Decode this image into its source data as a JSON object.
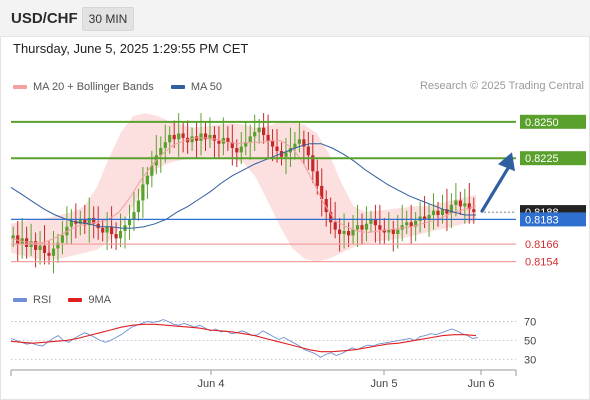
{
  "header": {
    "symbol": "USD/CHF",
    "timeframe": "30 MIN"
  },
  "timestamp": "Thursday, June 5, 2025 1:29:55 PM CET",
  "legend": {
    "ma20": "MA 20 + Bollinger Bands",
    "ma50": "MA 50",
    "credit": "Research © 2025 Trading Central"
  },
  "rsi_legend": {
    "rsi": "RSI",
    "ma9": "9MA"
  },
  "colors": {
    "green": "#5aa02c",
    "blue": "#2f6fd0",
    "red_line": "#f3a0a0",
    "bollinger": "#fbd6d6",
    "ma50": "#2f5f9f",
    "candle_up": "#5aa02c",
    "candle_down": "#c62828",
    "arrow": "#2f5f9f",
    "rsi": "#6f8fd8",
    "rsi_ma": "#e02020"
  },
  "chart_data": [
    {
      "type": "candlestick",
      "title": "",
      "ylim": [
        0.814,
        0.8265
      ],
      "x_labels": [
        "Jun 4",
        "Jun 5",
        "Jun 6"
      ],
      "price_levels": [
        {
          "value": 0.825,
          "label": "0.8250",
          "kind": "resistance"
        },
        {
          "value": 0.8225,
          "label": "0.8225",
          "kind": "resistance"
        },
        {
          "value": 0.8188,
          "label": "0.8188",
          "kind": "last-price"
        },
        {
          "value": 0.8183,
          "label": "0.8183",
          "kind": "pivot"
        },
        {
          "value": 0.8166,
          "label": "0.8166",
          "kind": "support"
        },
        {
          "value": 0.8154,
          "label": "0.8154",
          "kind": "support"
        }
      ],
      "close_series": [
        0.8172,
        0.8166,
        0.817,
        0.8164,
        0.8168,
        0.8162,
        0.8165,
        0.816,
        0.8158,
        0.8163,
        0.8167,
        0.8172,
        0.8178,
        0.8182,
        0.818,
        0.8183,
        0.8179,
        0.8184,
        0.818,
        0.8177,
        0.8174,
        0.8178,
        0.8173,
        0.817,
        0.8175,
        0.8179,
        0.8183,
        0.8188,
        0.8196,
        0.8207,
        0.8213,
        0.822,
        0.8227,
        0.8232,
        0.8236,
        0.8241,
        0.8238,
        0.8242,
        0.8239,
        0.8236,
        0.824,
        0.8237,
        0.8242,
        0.8238,
        0.8241,
        0.8237,
        0.8235,
        0.8239,
        0.8236,
        0.8232,
        0.8229,
        0.8233,
        0.8236,
        0.824,
        0.8243,
        0.8246,
        0.8241,
        0.8237,
        0.8233,
        0.823,
        0.8226,
        0.8229,
        0.8232,
        0.8235,
        0.8238,
        0.8233,
        0.8227,
        0.8216,
        0.8206,
        0.8197,
        0.8188,
        0.8181,
        0.8176,
        0.8173,
        0.8175,
        0.8172,
        0.8176,
        0.8179,
        0.8176,
        0.818,
        0.8183,
        0.8179,
        0.8176,
        0.8174,
        0.8176,
        0.8173,
        0.8176,
        0.8179,
        0.8181,
        0.8178,
        0.8182,
        0.8185,
        0.8183,
        0.8186,
        0.8189,
        0.8186,
        0.819,
        0.8187,
        0.8193,
        0.8196,
        0.8192,
        0.8194,
        0.819,
        0.8188
      ],
      "ma50_series": [
        0.8205,
        0.82,
        0.8195,
        0.819,
        0.8186,
        0.8183,
        0.8181,
        0.818,
        0.8178,
        0.8178,
        0.8177,
        0.8177,
        0.8178,
        0.818,
        0.8183,
        0.8188,
        0.8192,
        0.8197,
        0.8202,
        0.8208,
        0.8213,
        0.8217,
        0.8221,
        0.8224,
        0.8227,
        0.823,
        0.8233,
        0.8235,
        0.8235,
        0.8232,
        0.8228,
        0.8223,
        0.8217,
        0.8212,
        0.8207,
        0.8203,
        0.8199,
        0.8196,
        0.8193,
        0.819,
        0.8188,
        0.8186,
        0.8186
      ],
      "ma20_series": [
        0.817,
        0.8168,
        0.8167,
        0.8167,
        0.817,
        0.8174,
        0.8178,
        0.818,
        0.8181,
        0.8183,
        0.8188,
        0.8198,
        0.821,
        0.822,
        0.8228,
        0.8234,
        0.8237,
        0.8239,
        0.8239,
        0.8238,
        0.8236,
        0.8235,
        0.8236,
        0.8236,
        0.8237,
        0.8237,
        0.8232,
        0.8222,
        0.8208,
        0.8193,
        0.8182,
        0.8178,
        0.8175,
        0.8174,
        0.8175,
        0.8176,
        0.8177,
        0.8178,
        0.818,
        0.8182,
        0.8185,
        0.8188,
        0.819,
        0.8192
      ],
      "bollinger_upper": [
        0.818,
        0.8182,
        0.8183,
        0.8184,
        0.8186,
        0.8188,
        0.8192,
        0.8205,
        0.8225,
        0.8243,
        0.8254,
        0.8256,
        0.8254,
        0.825,
        0.8248,
        0.8246,
        0.8247,
        0.8248,
        0.8249,
        0.8248,
        0.8246,
        0.8247,
        0.825,
        0.825,
        0.8248,
        0.8242,
        0.8228,
        0.8208,
        0.8192,
        0.8188,
        0.8189,
        0.819,
        0.8191,
        0.8192,
        0.8192,
        0.8194,
        0.8196,
        0.8198,
        0.82
      ],
      "bollinger_lower": [
        0.816,
        0.8158,
        0.8156,
        0.8155,
        0.8156,
        0.8158,
        0.816,
        0.8162,
        0.8168,
        0.8178,
        0.8192,
        0.8208,
        0.8218,
        0.8222,
        0.8224,
        0.8225,
        0.8226,
        0.8226,
        0.8225,
        0.8222,
        0.8212,
        0.8195,
        0.8178,
        0.8163,
        0.8156,
        0.8154,
        0.8156,
        0.816,
        0.8164,
        0.8166,
        0.8168,
        0.8169,
        0.817,
        0.8172,
        0.8174,
        0.8176,
        0.8178,
        0.818,
        0.8182
      ],
      "forecast_arrow": {
        "from": 0.8188,
        "to": 0.8225
      }
    },
    {
      "type": "line",
      "title": "RSI",
      "ylim": [
        25,
        80
      ],
      "y_ticks": [
        70,
        50,
        30
      ],
      "series": [
        {
          "name": "RSI",
          "values": [
            52,
            50,
            48,
            46,
            47,
            45,
            44,
            48,
            52,
            55,
            50,
            48,
            52,
            55,
            58,
            56,
            53,
            50,
            48,
            50,
            53,
            56,
            60,
            64,
            66,
            68,
            70,
            69,
            70,
            72,
            70,
            67,
            66,
            68,
            66,
            64,
            66,
            63,
            60,
            62,
            59,
            60,
            57,
            58,
            60,
            58,
            55,
            56,
            60,
            57,
            54,
            51,
            53,
            50,
            47,
            44,
            40,
            38,
            36,
            32,
            35,
            37,
            34,
            36,
            39,
            42,
            40,
            43,
            45,
            44,
            46,
            47,
            48,
            49,
            50,
            51,
            52,
            50,
            54,
            55,
            57,
            56,
            58,
            60,
            62,
            60,
            57,
            55,
            52,
            53
          ]
        },
        {
          "name": "9MA",
          "values": [
            49,
            48,
            47,
            48,
            49,
            50,
            52,
            55,
            58,
            61,
            64,
            66,
            67,
            67,
            66,
            65,
            64,
            63,
            61,
            60,
            59,
            57,
            55,
            52,
            49,
            46,
            43,
            40,
            38,
            38,
            39,
            40,
            42,
            44,
            46,
            47,
            49,
            51,
            53,
            55,
            56,
            56,
            55
          ]
        }
      ]
    }
  ]
}
